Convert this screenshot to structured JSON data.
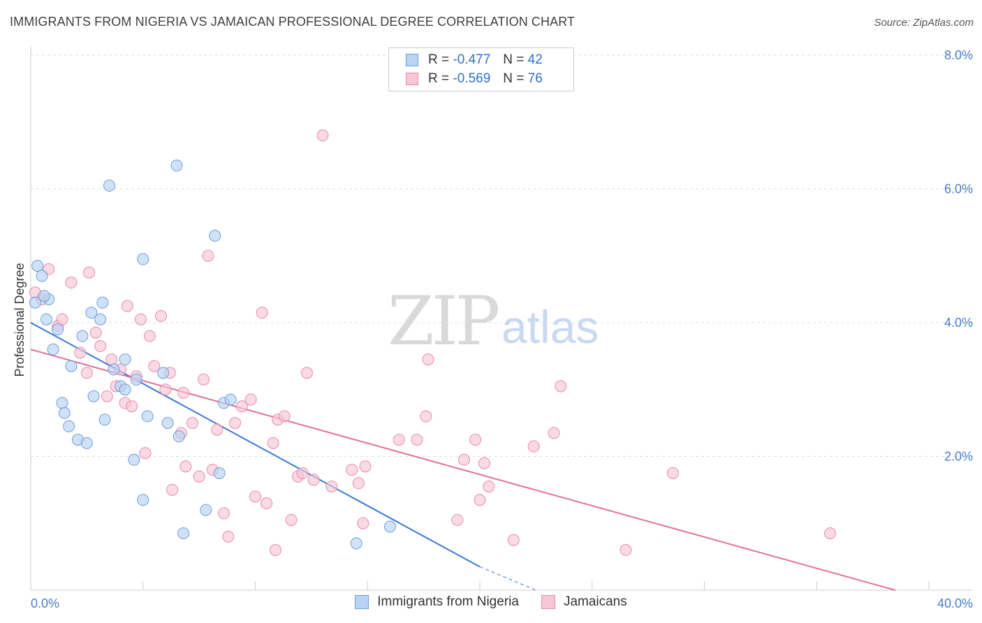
{
  "title": "IMMIGRANTS FROM NIGERIA VS JAMAICAN PROFESSIONAL DEGREE CORRELATION CHART",
  "source": "Source: ZipAtlas.com",
  "watermark": {
    "zip": "ZIP",
    "atlas": "atlas"
  },
  "legend": {
    "rows": [
      {
        "r_label": "R =",
        "r_value": "-0.477",
        "n_label": "N =",
        "n_value": "42"
      },
      {
        "r_label": "R =",
        "r_value": "-0.569",
        "n_label": "N =",
        "n_value": "76"
      }
    ]
  },
  "bottom_legend": [
    "Immigrants from Nigeria",
    "Jamaicans"
  ],
  "colors": {
    "blue_fill": "#b8d3f4",
    "blue_stroke": "#6d9fd8",
    "blue_line": "#3a78d4",
    "pink_fill": "#f8c6d6",
    "pink_stroke": "#e98aaa",
    "pink_line": "#e0709a",
    "tick_text": "#4a7cc9",
    "grid": "#dddddd"
  },
  "chart_data": {
    "type": "scatter",
    "title": "IMMIGRANTS FROM NIGERIA VS JAMAICAN PROFESSIONAL DEGREE CORRELATION CHART",
    "xlabel": "",
    "ylabel": "Professional Degree",
    "xlim": [
      0,
      40
    ],
    "ylim": [
      0,
      8.0
    ],
    "x_tick_labels": [
      "0.0%",
      "40.0%"
    ],
    "y_tick_labels": [
      "2.0%",
      "4.0%",
      "6.0%",
      "8.0%"
    ],
    "y_ticks": [
      2,
      4,
      6,
      8
    ],
    "grid": "horizontal dashed",
    "legend_position": "top-center",
    "series": [
      {
        "name": "Immigrants from Nigeria",
        "color": "blue",
        "points": [
          [
            0.3,
            4.85
          ],
          [
            0.5,
            4.7
          ],
          [
            0.8,
            4.35
          ],
          [
            0.7,
            4.05
          ],
          [
            1.2,
            3.9
          ],
          [
            1.0,
            3.6
          ],
          [
            1.8,
            3.35
          ],
          [
            2.3,
            3.8
          ],
          [
            2.7,
            4.15
          ],
          [
            3.1,
            4.05
          ],
          [
            3.2,
            4.3
          ],
          [
            3.5,
            6.05
          ],
          [
            4.2,
            3.45
          ],
          [
            3.7,
            3.3
          ],
          [
            4.0,
            3.05
          ],
          [
            4.7,
            3.15
          ],
          [
            5.0,
            4.95
          ],
          [
            5.2,
            2.6
          ],
          [
            5.9,
            3.25
          ],
          [
            6.1,
            2.5
          ],
          [
            6.5,
            6.35
          ],
          [
            6.6,
            2.3
          ],
          [
            8.2,
            5.3
          ],
          [
            8.6,
            2.8
          ],
          [
            8.9,
            2.85
          ],
          [
            1.4,
            2.8
          ],
          [
            1.5,
            2.65
          ],
          [
            1.7,
            2.45
          ],
          [
            2.1,
            2.25
          ],
          [
            2.5,
            2.2
          ],
          [
            2.8,
            2.9
          ],
          [
            3.3,
            2.55
          ],
          [
            4.2,
            3.0
          ],
          [
            4.6,
            1.95
          ],
          [
            5.0,
            1.35
          ],
          [
            6.8,
            0.85
          ],
          [
            7.8,
            1.2
          ],
          [
            8.4,
            1.75
          ],
          [
            14.5,
            0.7
          ],
          [
            16.0,
            0.95
          ],
          [
            0.2,
            4.3
          ],
          [
            0.6,
            4.4
          ]
        ]
      },
      {
        "name": "Jamaicans",
        "color": "pink",
        "points": [
          [
            0.2,
            4.45
          ],
          [
            0.5,
            4.35
          ],
          [
            0.8,
            4.8
          ],
          [
            1.2,
            3.95
          ],
          [
            1.4,
            4.05
          ],
          [
            1.8,
            4.6
          ],
          [
            2.2,
            3.55
          ],
          [
            2.5,
            3.25
          ],
          [
            2.6,
            4.75
          ],
          [
            2.9,
            3.85
          ],
          [
            3.1,
            3.65
          ],
          [
            3.4,
            2.9
          ],
          [
            3.6,
            3.45
          ],
          [
            3.8,
            3.05
          ],
          [
            4.0,
            3.3
          ],
          [
            4.2,
            2.8
          ],
          [
            4.3,
            4.25
          ],
          [
            4.5,
            2.75
          ],
          [
            4.7,
            3.2
          ],
          [
            4.9,
            4.05
          ],
          [
            5.1,
            2.05
          ],
          [
            5.3,
            3.8
          ],
          [
            5.5,
            3.35
          ],
          [
            5.8,
            4.1
          ],
          [
            6.0,
            3.0
          ],
          [
            6.2,
            3.25
          ],
          [
            6.3,
            1.5
          ],
          [
            6.7,
            2.35
          ],
          [
            6.9,
            1.85
          ],
          [
            7.2,
            2.5
          ],
          [
            7.5,
            1.7
          ],
          [
            7.7,
            3.15
          ],
          [
            7.9,
            5.0
          ],
          [
            8.1,
            1.8
          ],
          [
            8.3,
            2.4
          ],
          [
            8.6,
            1.15
          ],
          [
            8.8,
            0.8
          ],
          [
            9.1,
            2.5
          ],
          [
            9.4,
            2.75
          ],
          [
            9.8,
            2.85
          ],
          [
            10.0,
            1.4
          ],
          [
            10.3,
            4.15
          ],
          [
            10.5,
            1.3
          ],
          [
            10.8,
            2.2
          ],
          [
            11.0,
            2.55
          ],
          [
            11.3,
            2.6
          ],
          [
            11.6,
            1.05
          ],
          [
            11.9,
            1.7
          ],
          [
            12.3,
            3.25
          ],
          [
            12.6,
            1.65
          ],
          [
            13.0,
            6.8
          ],
          [
            13.4,
            1.55
          ],
          [
            14.3,
            1.8
          ],
          [
            14.6,
            1.6
          ],
          [
            14.8,
            1.0
          ],
          [
            14.9,
            1.85
          ],
          [
            16.4,
            2.25
          ],
          [
            17.2,
            2.25
          ],
          [
            17.6,
            2.6
          ],
          [
            17.7,
            3.45
          ],
          [
            19.0,
            1.05
          ],
          [
            19.3,
            1.95
          ],
          [
            19.8,
            2.25
          ],
          [
            20.0,
            1.35
          ],
          [
            20.2,
            1.9
          ],
          [
            20.4,
            1.55
          ],
          [
            21.5,
            0.75
          ],
          [
            22.4,
            2.15
          ],
          [
            23.3,
            2.35
          ],
          [
            23.6,
            3.05
          ],
          [
            26.5,
            0.6
          ],
          [
            28.6,
            1.75
          ],
          [
            35.6,
            0.85
          ],
          [
            10.9,
            0.6
          ],
          [
            6.8,
            2.95
          ],
          [
            12.1,
            1.75
          ]
        ]
      }
    ],
    "trendlines": [
      {
        "series": "Immigrants from Nigeria",
        "x1": 0,
        "y1": 4.0,
        "x2": 20.0,
        "y2": 0.35,
        "dashed_extension_to": [
          22.5,
          -0.1
        ]
      },
      {
        "series": "Jamaicans",
        "x1": 0,
        "y1": 3.6,
        "x2": 38.5,
        "y2": 0.0
      }
    ]
  }
}
